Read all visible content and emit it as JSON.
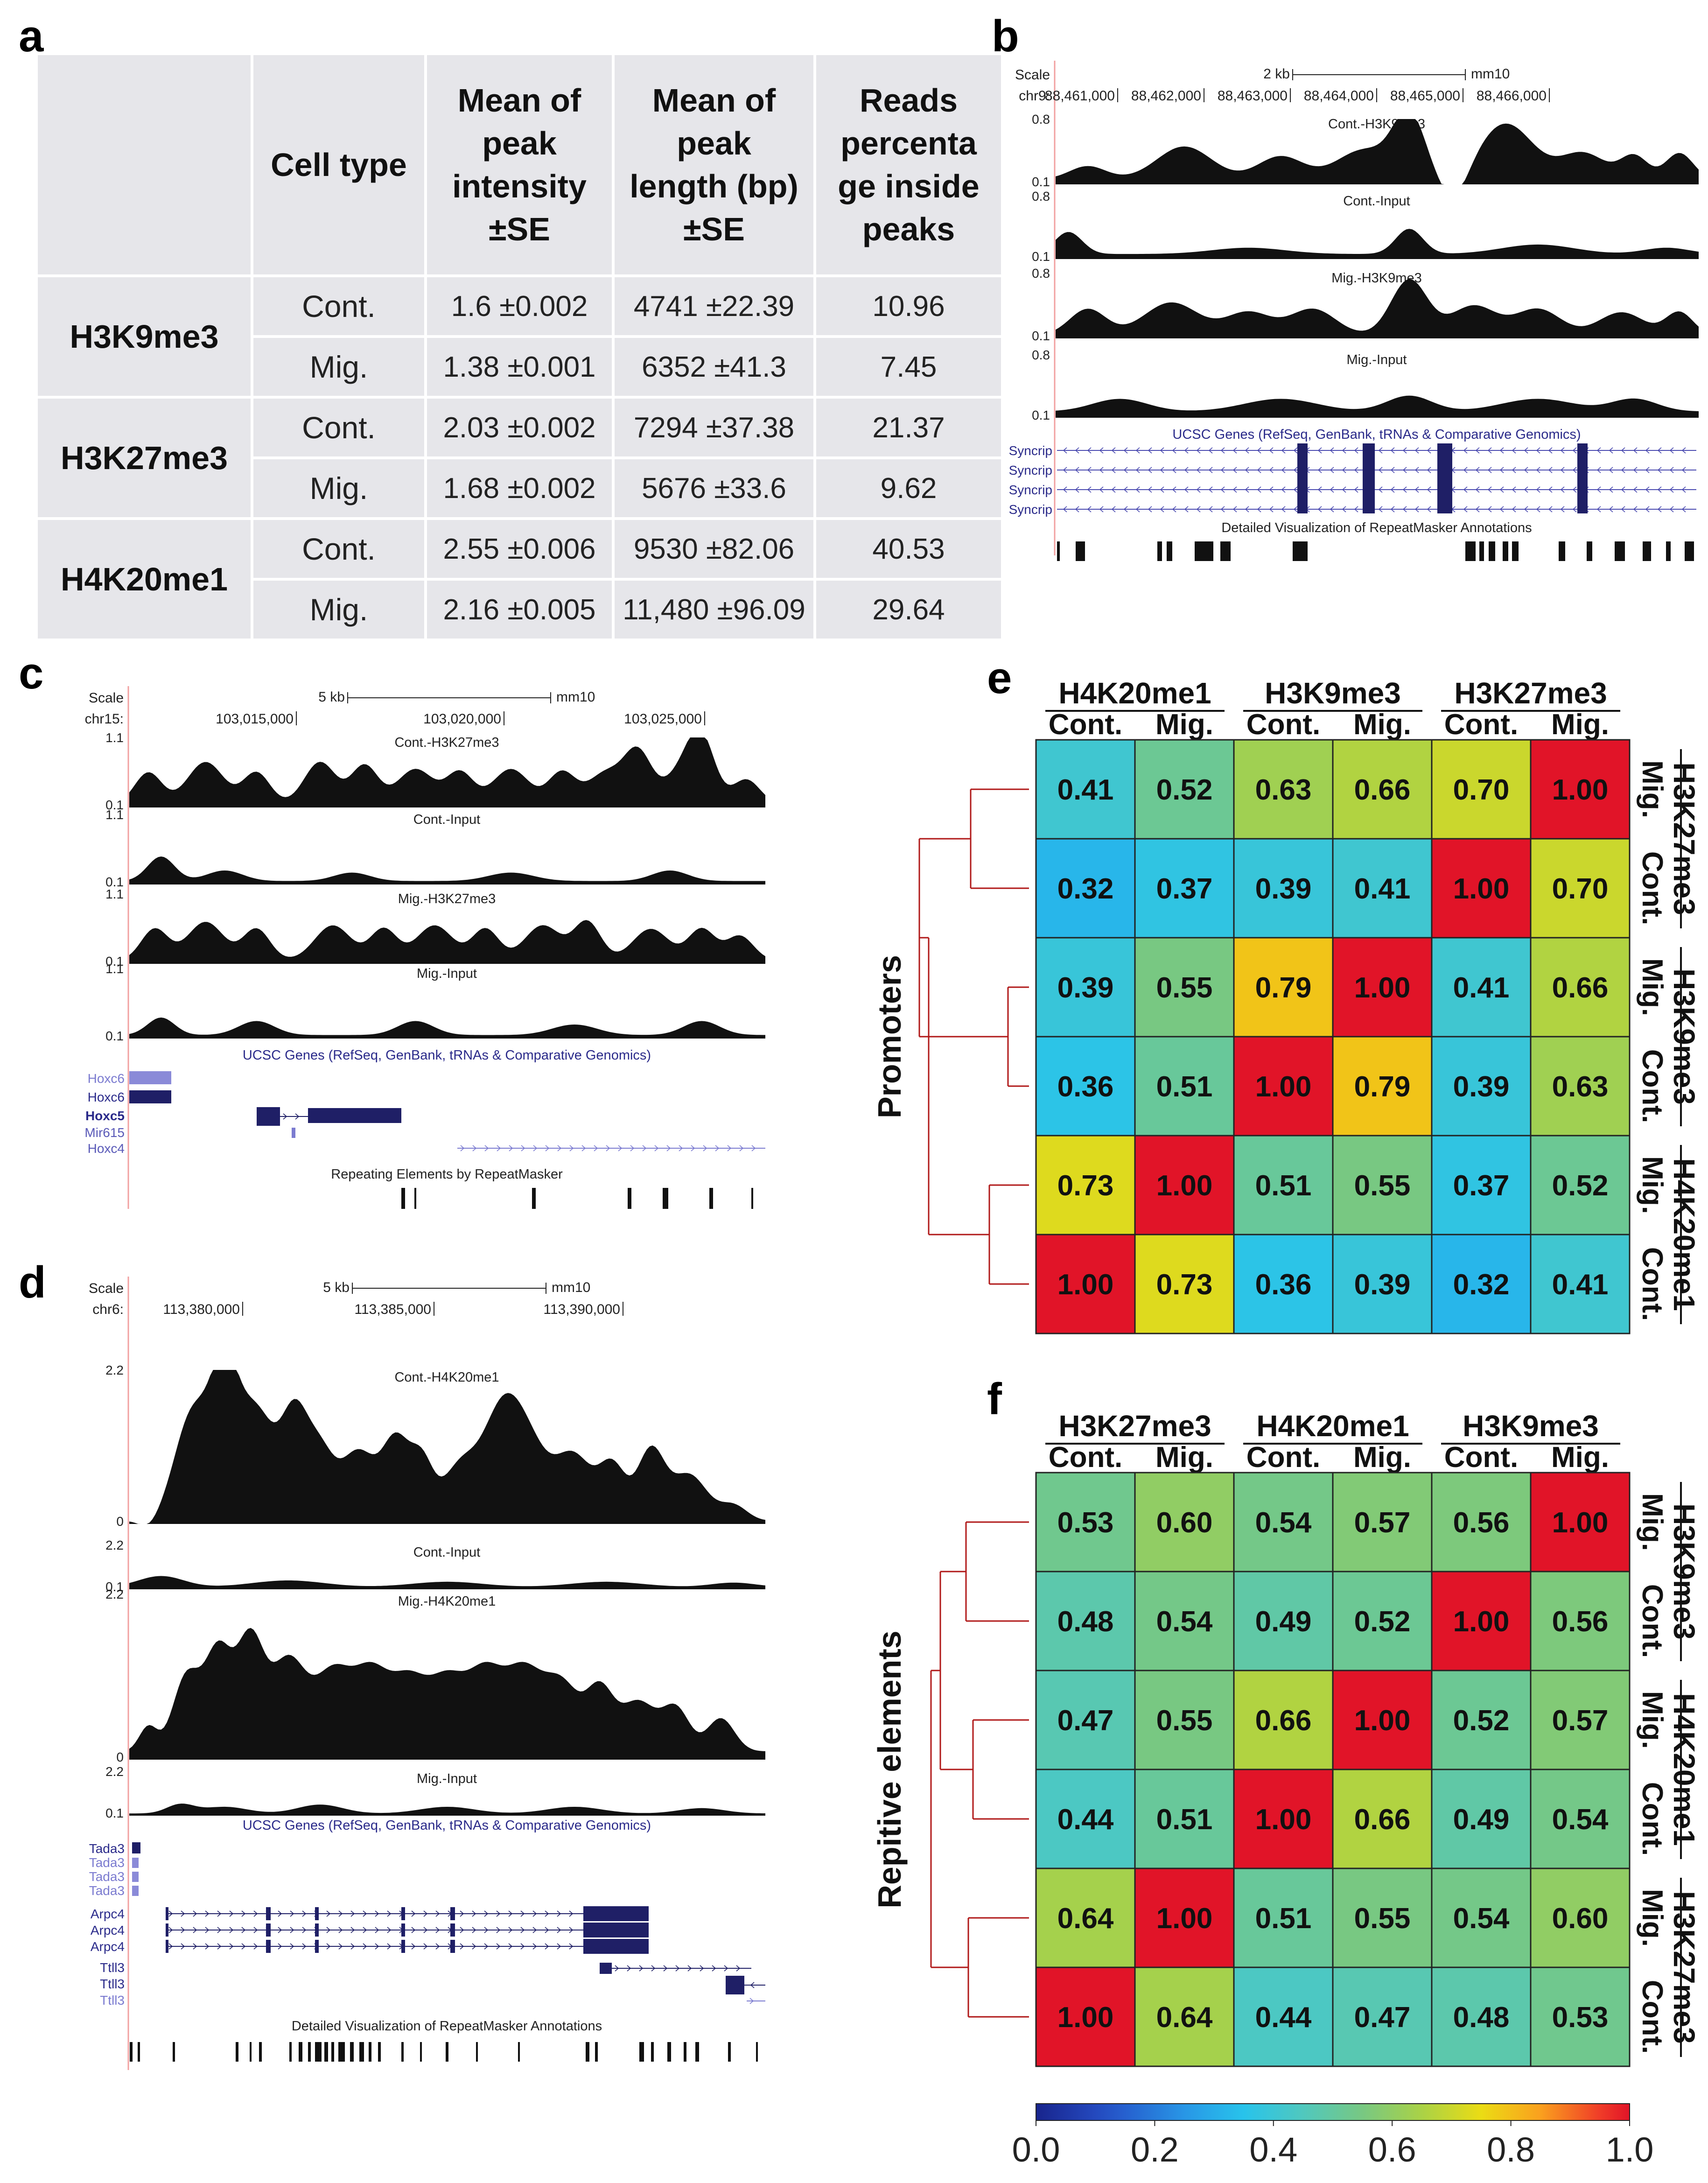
{
  "panels": {
    "a": {
      "letter": "a"
    },
    "b": {
      "letter": "b"
    },
    "c": {
      "letter": "c"
    },
    "d": {
      "letter": "d"
    },
    "e": {
      "letter": "e"
    },
    "f": {
      "letter": "f"
    }
  },
  "table": {
    "headers": [
      "",
      "Cell type",
      "Mean of peak intensity ±SE",
      "Mean of peak length (bp) ±SE",
      "Reads percentage inside peaks"
    ],
    "header_lines": [
      [
        ""
      ],
      [
        "Cell type"
      ],
      [
        "Mean of",
        "peak",
        "intensity",
        "±SE"
      ],
      [
        "Mean of",
        "peak",
        "length (bp)",
        "±SE"
      ],
      [
        "Reads",
        "percenta",
        "ge inside",
        "peaks"
      ]
    ],
    "groups": [
      {
        "mark": "H3K9me3",
        "rows": [
          {
            "cell": "Cont.",
            "intensity": "1.6 ±0.002",
            "length": "4741 ±22.39",
            "reads": "10.96"
          },
          {
            "cell": "Mig.",
            "intensity": "1.38 ±0.001",
            "length": "6352 ±41.3",
            "reads": "7.45"
          }
        ]
      },
      {
        "mark": "H3K27me3",
        "rows": [
          {
            "cell": "Cont.",
            "intensity": "2.03 ±0.002",
            "length": "7294 ±37.38",
            "reads": "21.37"
          },
          {
            "cell": "Mig.",
            "intensity": "1.68 ±0.002",
            "length": "5676 ±33.6",
            "reads": "9.62"
          }
        ]
      },
      {
        "mark": "H4K20me1",
        "rows": [
          {
            "cell": "Cont.",
            "intensity": "2.55 ±0.006",
            "length": "9530 ±82.06",
            "reads": "40.53"
          },
          {
            "cell": "Mig.",
            "intensity": "2.16 ±0.005",
            "length": "11,480 ±96.09",
            "reads": "29.64"
          }
        ]
      }
    ]
  },
  "browser_b": {
    "scale_label": "Scale",
    "chrom": "chr9:",
    "assembly": "mm10",
    "scale_bar": "2 kb",
    "positions": [
      "88,461,000",
      "88,462,000",
      "88,463,000",
      "88,464,000",
      "88,465,000",
      "88,466,000"
    ],
    "tracks": [
      {
        "name": "Cont.-H3K9me3",
        "ymax": "0.8",
        "ymin": "0.1"
      },
      {
        "name": "Cont.-Input",
        "ymax": "0.8",
        "ymin": "0.1"
      },
      {
        "name": "Mig.-H3K9me3",
        "ymax": "0.8",
        "ymin": "0.1"
      },
      {
        "name": "Mig.-Input",
        "ymax": "0.8",
        "ymin": "0.1"
      }
    ],
    "genes_title": "UCSC Genes (RefSeq, GenBank, tRNAs & Comparative Genomics)",
    "genes": [
      "Syncrip",
      "Syncrip",
      "Syncrip",
      "Syncrip"
    ],
    "repeat_title": "Detailed Visualization of RepeatMasker Annotations"
  },
  "browser_c": {
    "scale_label": "Scale",
    "chrom": "chr15:",
    "assembly": "mm10",
    "scale_bar": "5 kb",
    "positions": [
      "103,015,000",
      "103,020,000",
      "103,025,000"
    ],
    "tracks": [
      {
        "name": "Cont.-H3K27me3",
        "ymax": "1.1",
        "ymin": "0.1"
      },
      {
        "name": "Cont.-Input",
        "ymax": "1.1",
        "ymin": "0.1"
      },
      {
        "name": "Mig.-H3K27me3",
        "ymax": "1.1",
        "ymin": "0.1"
      },
      {
        "name": "Mig.-Input",
        "ymax": "1.1",
        "ymin": "0.1"
      }
    ],
    "genes_title": "UCSC Genes (RefSeq, GenBank, tRNAs & Comparative Genomics)",
    "genes": [
      "Hoxc6",
      "Hoxc6",
      "Hoxc5",
      "Mir615",
      "Hoxc4"
    ],
    "repeat_title": "Repeating Elements by RepeatMasker"
  },
  "browser_d": {
    "scale_label": "Scale",
    "chrom": "chr6:",
    "assembly": "mm10",
    "scale_bar": "5 kb",
    "positions": [
      "113,380,000",
      "113,385,000",
      "113,390,000"
    ],
    "tracks": [
      {
        "name": "Cont.-H4K20me1",
        "ymax": "2.2",
        "ymin": "0"
      },
      {
        "name": "Cont.-Input",
        "ymax": "2.2",
        "ymin": "0.1"
      },
      {
        "name": "Mig.-H4K20me1",
        "ymax": "2.2",
        "ymin": "0"
      },
      {
        "name": "Mig.-Input",
        "ymax": "2.2",
        "ymin": "0.1"
      }
    ],
    "genes_title": "UCSC Genes (RefSeq, GenBank, tRNAs & Comparative Genomics)",
    "genes": [
      "Tada3",
      "Tada3",
      "Tada3",
      "Tada3",
      "Arpc4",
      "Arpc4",
      "Arpc4",
      "Ttll3",
      "Ttll3",
      "Ttll3"
    ],
    "repeat_title": "Detailed Visualization of RepeatMasker Annotations"
  },
  "chart_data": [
    {
      "type": "heatmap",
      "panel": "e",
      "ylabel": "Promoters",
      "column_groups": [
        "H4K20me1",
        "H3K9me3",
        "H3K27me3"
      ],
      "columns": [
        "Cont.",
        "Mig.",
        "Cont.",
        "Mig.",
        "Cont.",
        "Mig."
      ],
      "row_groups": [
        "H3K27me3",
        "H3K9me3",
        "H4K20me1"
      ],
      "rows": [
        "Mig.",
        "Cont.",
        "Mig.",
        "Cont.",
        "Mig.",
        "Cont."
      ],
      "values": [
        [
          0.41,
          0.52,
          0.63,
          0.66,
          0.7,
          1.0
        ],
        [
          0.32,
          0.37,
          0.39,
          0.41,
          1.0,
          0.7
        ],
        [
          0.39,
          0.55,
          0.79,
          1.0,
          0.41,
          0.66
        ],
        [
          0.36,
          0.51,
          1.0,
          0.79,
          0.39,
          0.63
        ],
        [
          0.73,
          1.0,
          0.51,
          0.55,
          0.37,
          0.52
        ],
        [
          1.0,
          0.73,
          0.36,
          0.39,
          0.32,
          0.41
        ]
      ],
      "labels": [
        [
          "0.41",
          "0.52",
          "0.63",
          "0.66",
          "0.70",
          "1.00"
        ],
        [
          "0.32",
          "0.37",
          "0.39",
          "0.41",
          "1.00",
          "0.70"
        ],
        [
          "0.39",
          "0.55",
          "0.79",
          "1.00",
          "0.41",
          "0.66"
        ],
        [
          "0.36",
          "0.51",
          "1.00",
          "0.79",
          "0.39",
          "0.63"
        ],
        [
          "0.73",
          "1.00",
          "0.51",
          "0.55",
          "0.37",
          "0.52"
        ],
        [
          "1.00",
          "0.73",
          "0.36",
          "0.39",
          "0.32",
          "0.41"
        ]
      ],
      "color_range": [
        0,
        1
      ]
    },
    {
      "type": "heatmap",
      "panel": "f",
      "ylabel": "Repitive elements",
      "column_groups": [
        "H3K27me3",
        "H4K20me1",
        "H3K9me3"
      ],
      "columns": [
        "Cont.",
        "Mig.",
        "Cont.",
        "Mig.",
        "Cont.",
        "Mig."
      ],
      "row_groups": [
        "H3K9me3",
        "H4K20me1",
        "H3K27me3"
      ],
      "rows": [
        "Mig.",
        "Cont.",
        "Mig.",
        "Cont.",
        "Mig.",
        "Cont."
      ],
      "values": [
        [
          0.53,
          0.6,
          0.54,
          0.57,
          0.56,
          1.0
        ],
        [
          0.48,
          0.54,
          0.49,
          0.52,
          1.0,
          0.56
        ],
        [
          0.47,
          0.55,
          0.66,
          1.0,
          0.52,
          0.57
        ],
        [
          0.44,
          0.51,
          1.0,
          0.66,
          0.49,
          0.54
        ],
        [
          0.64,
          1.0,
          0.51,
          0.55,
          0.54,
          0.6
        ],
        [
          1.0,
          0.64,
          0.44,
          0.47,
          0.48,
          0.53
        ]
      ],
      "labels": [
        [
          "0.53",
          "0.60",
          "0.54",
          "0.57",
          "0.56",
          "1.00"
        ],
        [
          "0.48",
          "0.54",
          "0.49",
          "0.52",
          "1.00",
          "0.56"
        ],
        [
          "0.47",
          "0.55",
          "0.66",
          "1.00",
          "0.52",
          "0.57"
        ],
        [
          "0.44",
          "0.51",
          "1.00",
          "0.66",
          "0.49",
          "0.54"
        ],
        [
          "0.64",
          "1.00",
          "0.51",
          "0.55",
          "0.54",
          "0.60"
        ],
        [
          "1.00",
          "0.64",
          "0.44",
          "0.47",
          "0.48",
          "0.53"
        ]
      ],
      "color_range": [
        0,
        1
      ],
      "colorbar_ticks": [
        "0.0",
        "0.2",
        "0.4",
        "0.6",
        "0.8",
        "1.0"
      ]
    }
  ],
  "colors": {
    "gene_dark": "#1f1f66",
    "gene_light": "#7b7bd0",
    "signal": "#111111",
    "dendrogram": "#b01818",
    "table_bg": "#e6e6ea"
  }
}
